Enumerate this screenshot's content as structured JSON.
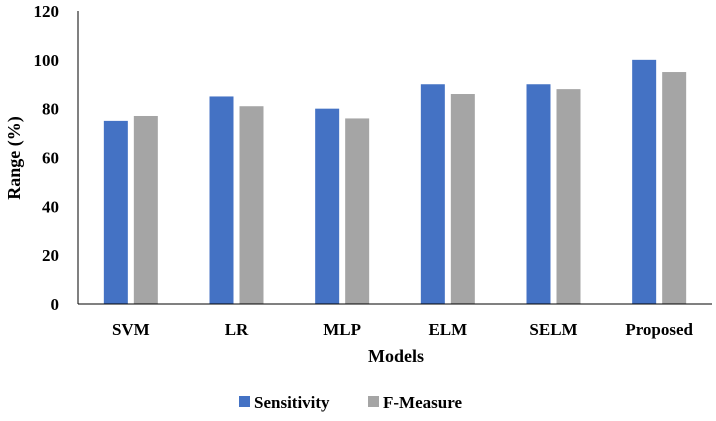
{
  "chart_data": {
    "type": "bar",
    "title": "",
    "xlabel": "Models",
    "ylabel": "Range (%)",
    "ylim": [
      0,
      120
    ],
    "yticks": [
      0,
      20,
      40,
      60,
      80,
      100,
      120
    ],
    "categories": [
      "SVM",
      "LR",
      "MLP",
      "ELM",
      "SELM",
      "Proposed"
    ],
    "series": [
      {
        "name": "Sensitivity",
        "color": "#4472c4",
        "values": [
          75,
          85,
          80,
          90,
          90,
          100
        ]
      },
      {
        "name": "F-Measure",
        "color": "#a5a5a5",
        "values": [
          77,
          81,
          76,
          86,
          88,
          95
        ]
      }
    ],
    "grid": false,
    "legend": "bottom"
  }
}
